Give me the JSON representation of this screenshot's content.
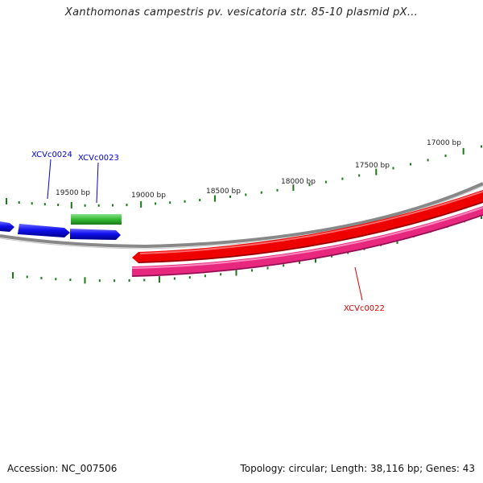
{
  "title": "Xanthomonas campestris pv. vesicatoria str. 85-10 plasmid pX...",
  "footer": {
    "accession_label": "Accession:",
    "accession": "NC_007506",
    "topology_label": "Topology:",
    "topology": "circular",
    "length_label": "Length:",
    "length": "38,116 bp",
    "genes_label": "Genes:",
    "genes": "43"
  },
  "scale_labels": [
    "17000 bp",
    "17500 bp",
    "18000 bp",
    "18500 bp",
    "19000 bp",
    "19500 bp"
  ],
  "genes": [
    {
      "id": "XCVc0024",
      "strand": "forward",
      "color": "#0000ee"
    },
    {
      "id": "XCVc0023",
      "strand": "forward",
      "color": "#0000ee"
    },
    {
      "id": "XCVc0022",
      "strand": "reverse",
      "color": "#ff0000"
    }
  ],
  "colors": {
    "forward_cds": "#1010ee",
    "reverse_cds": "#ee0000",
    "green_feature": "#33bb33",
    "pink_feature": "#e8287e",
    "backbone": "#888888",
    "tick": "#1a7a1a"
  }
}
